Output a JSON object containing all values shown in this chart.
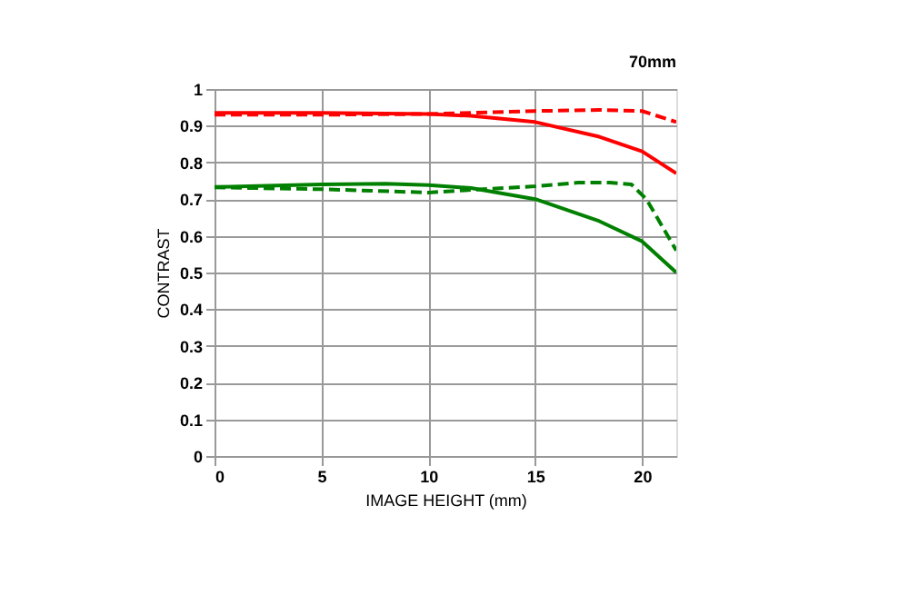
{
  "chart_data": {
    "type": "line",
    "title": "70mm",
    "xlabel": "IMAGE HEIGHT (mm)",
    "ylabel": "CONTRAST",
    "xlim": [
      0,
      21.6
    ],
    "xticks": [
      0,
      5,
      10,
      15,
      20
    ],
    "ylim": [
      0,
      1
    ],
    "yticks": [
      0,
      0.1,
      0.2,
      0.3,
      0.4,
      0.5,
      0.6,
      0.7,
      0.8,
      0.9,
      1
    ],
    "grid": true,
    "marker": "none",
    "series": [
      {
        "color": "#ff0000",
        "line_style": "solid",
        "x": [
          0,
          5,
          10,
          12,
          15,
          18,
          20,
          21.6
        ],
        "values": [
          0.935,
          0.935,
          0.932,
          0.927,
          0.91,
          0.87,
          0.83,
          0.77
        ]
      },
      {
        "color": "#ff0000",
        "line_style": "dashed",
        "x": [
          0,
          5,
          10,
          15,
          18,
          20,
          21.6
        ],
        "values": [
          0.93,
          0.93,
          0.932,
          0.94,
          0.943,
          0.94,
          0.91
        ]
      },
      {
        "color": "#008000",
        "line_style": "solid",
        "x": [
          0,
          5,
          8,
          10,
          12,
          15,
          18,
          20,
          21.6
        ],
        "values": [
          0.733,
          0.74,
          0.742,
          0.738,
          0.73,
          0.7,
          0.64,
          0.585,
          0.5
        ]
      },
      {
        "color": "#008000",
        "line_style": "dashed",
        "x": [
          0,
          5,
          10,
          12,
          15,
          17,
          18.5,
          19.5,
          20.2,
          21,
          21.6
        ],
        "values": [
          0.732,
          0.727,
          0.718,
          0.725,
          0.735,
          0.745,
          0.745,
          0.74,
          0.7,
          0.62,
          0.56
        ]
      }
    ]
  }
}
